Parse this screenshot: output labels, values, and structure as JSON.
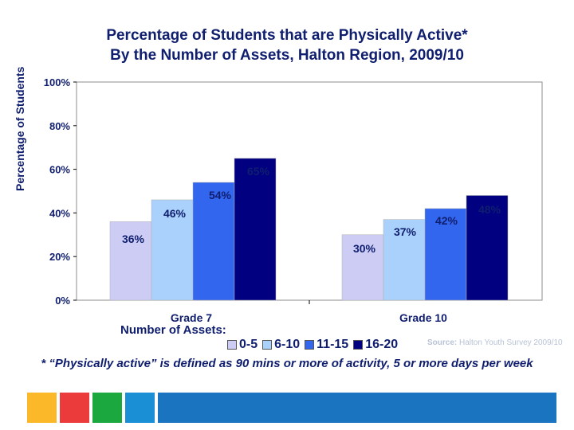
{
  "title": {
    "line1": "Percentage of Students that are Physically Active*",
    "line2": "By the Number of Assets, Halton Region, 2009/10"
  },
  "chart_data": {
    "type": "bar",
    "title": "Percentage of Students that are Physically Active* By the Number of Assets, Halton Region, 2009/10",
    "ylabel": "Percentage of Students",
    "xlabel": "",
    "ylim": [
      0,
      100
    ],
    "yticks": [
      "0%",
      "20%",
      "40%",
      "60%",
      "80%",
      "100%"
    ],
    "categories": [
      "Grade 7",
      "Grade 10"
    ],
    "series": [
      {
        "name": "0-5",
        "color": "#ccccf5",
        "values": [
          36,
          30
        ],
        "labels": [
          "36%",
          "30%"
        ]
      },
      {
        "name": "6-10",
        "color": "#a9d1fb",
        "values": [
          46,
          37
        ],
        "labels": [
          "46%",
          "37%"
        ]
      },
      {
        "name": "11-15",
        "color": "#3366ee",
        "values": [
          54,
          42
        ],
        "labels": [
          "54%",
          "42%"
        ]
      },
      {
        "name": "16-20",
        "color": "#000080",
        "values": [
          65,
          48
        ],
        "labels": [
          "65%",
          "48%"
        ]
      }
    ],
    "legend_title": "Number of Assets:"
  },
  "legend": {
    "title": "Number of Assets:",
    "items": [
      {
        "label": "0-5",
        "color": "#ccccf5"
      },
      {
        "label": "6-10",
        "color": "#a9d1fb"
      },
      {
        "label": "11-15",
        "color": "#3366ee"
      },
      {
        "label": "16-20",
        "color": "#000080"
      }
    ]
  },
  "source": {
    "label": "Source:",
    "text": "Halton Youth Survey 2009/10"
  },
  "footnote": "* “Physically active” is defined as 90 mins or more of activity, 5 or more days per week",
  "footer_colors": [
    "#fbb829",
    "#ec3b3b",
    "#1aa83f",
    "#1a8fd6",
    "#1a74bf"
  ]
}
